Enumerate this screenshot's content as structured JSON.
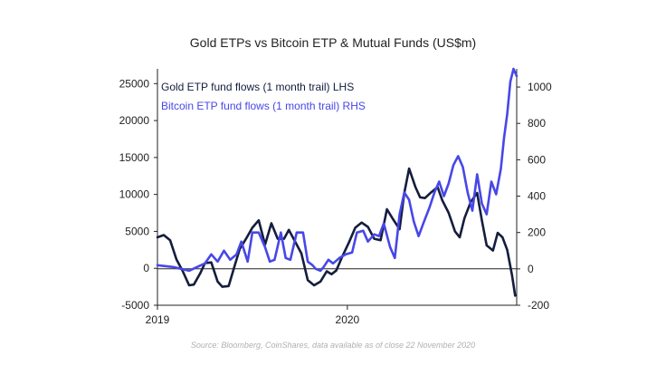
{
  "chart_data": {
    "type": "line",
    "title": "Gold ETPs vs Bitcoin ETP & Mutual Funds (US$m)",
    "source": "Source: Bloomberg, CoinShares, data available as of close 22 November 2020",
    "x_tick_labels": [
      "2019",
      "2020"
    ],
    "x_tick_values": [
      0,
      12
    ],
    "x_range": [
      0,
      22.7
    ],
    "y_left": {
      "ylim": [
        -5000,
        27000
      ],
      "ticks": [
        -5000,
        0,
        5000,
        10000,
        15000,
        20000,
        25000
      ],
      "tick_labels": [
        "-5000",
        "0",
        "5000",
        "10000",
        "15000",
        "20000",
        "25000"
      ]
    },
    "y_right": {
      "ylim": [
        -200,
        1100
      ],
      "ticks": [
        -200,
        0,
        200,
        400,
        600,
        800,
        1000
      ],
      "tick_labels": [
        "-200",
        "0",
        "200",
        "400",
        "600",
        "800",
        "1000"
      ]
    },
    "series": [
      {
        "name": "Gold ETP fund flows (1 month trail) LHS",
        "axis": "left",
        "color": "#141d3d",
        "x": [
          0,
          0.4,
          0.8,
          1.2,
          1.6,
          2.0,
          2.3,
          2.7,
          3.0,
          3.4,
          3.8,
          4.1,
          4.5,
          4.9,
          5.2,
          5.6,
          6.0,
          6.4,
          6.8,
          7.2,
          7.6,
          8.0,
          8.3,
          8.7,
          9.1,
          9.5,
          9.9,
          10.3,
          10.7,
          11.0,
          11.3,
          11.7,
          12.1,
          12.5,
          12.9,
          13.3,
          13.7,
          14.1,
          14.5,
          14.9,
          15.3,
          15.6,
          15.9,
          16.3,
          16.6,
          16.9,
          17.3,
          17.7,
          18.0,
          18.4,
          18.8,
          19.1,
          19.4,
          19.8,
          20.2,
          20.5,
          20.8,
          21.2,
          21.5,
          21.8,
          22.1,
          22.4,
          22.6
        ],
        "y": [
          4200,
          4500,
          3800,
          1200,
          -400,
          -2300,
          -2200,
          -700,
          700,
          800,
          -1800,
          -2500,
          -2400,
          500,
          2600,
          4000,
          5500,
          6500,
          3200,
          6100,
          4000,
          4000,
          5200,
          3600,
          2000,
          -1600,
          -2300,
          -1800,
          -400,
          -800,
          -300,
          1700,
          3500,
          5500,
          6200,
          5600,
          4000,
          3800,
          8000,
          6600,
          5300,
          10200,
          13500,
          11000,
          9600,
          9500,
          10300,
          11000,
          9200,
          7500,
          5000,
          4200,
          6800,
          9000,
          10200,
          6500,
          3100,
          2400,
          4800,
          4200,
          2500,
          -900,
          -3700
        ]
      },
      {
        "name": "Bitcoin ETP fund flows (1 month trail) RHS",
        "axis": "right",
        "color": "#4747e8",
        "x": [
          0,
          0.5,
          1.0,
          1.5,
          2.0,
          2.5,
          3.0,
          3.4,
          3.8,
          4.2,
          4.6,
          5.0,
          5.3,
          5.7,
          6.0,
          6.4,
          6.8,
          7.1,
          7.4,
          7.8,
          8.1,
          8.4,
          8.8,
          9.2,
          9.5,
          9.8,
          10.0,
          10.3,
          10.5,
          10.8,
          11.1,
          11.5,
          11.9,
          12.3,
          12.6,
          13.0,
          13.3,
          13.7,
          14.0,
          14.3,
          14.7,
          15.0,
          15.3,
          15.6,
          15.9,
          16.2,
          16.5,
          16.8,
          17.2,
          17.5,
          17.8,
          18.1,
          18.4,
          18.7,
          19.0,
          19.3,
          19.6,
          19.9,
          20.2,
          20.5,
          20.8,
          21.1,
          21.4,
          21.7,
          21.9,
          22.1,
          22.3,
          22.5,
          22.7
        ],
        "y": [
          20,
          15,
          10,
          0,
          -10,
          10,
          30,
          80,
          40,
          100,
          50,
          80,
          150,
          40,
          200,
          200,
          120,
          40,
          50,
          200,
          60,
          50,
          200,
          200,
          40,
          20,
          0,
          -10,
          10,
          50,
          30,
          60,
          80,
          90,
          200,
          210,
          150,
          190,
          180,
          250,
          120,
          60,
          300,
          420,
          380,
          260,
          180,
          250,
          340,
          420,
          480,
          400,
          470,
          570,
          620,
          560,
          420,
          320,
          520,
          360,
          300,
          480,
          410,
          550,
          720,
          850,
          1030,
          1100,
          1060
        ]
      }
    ]
  }
}
